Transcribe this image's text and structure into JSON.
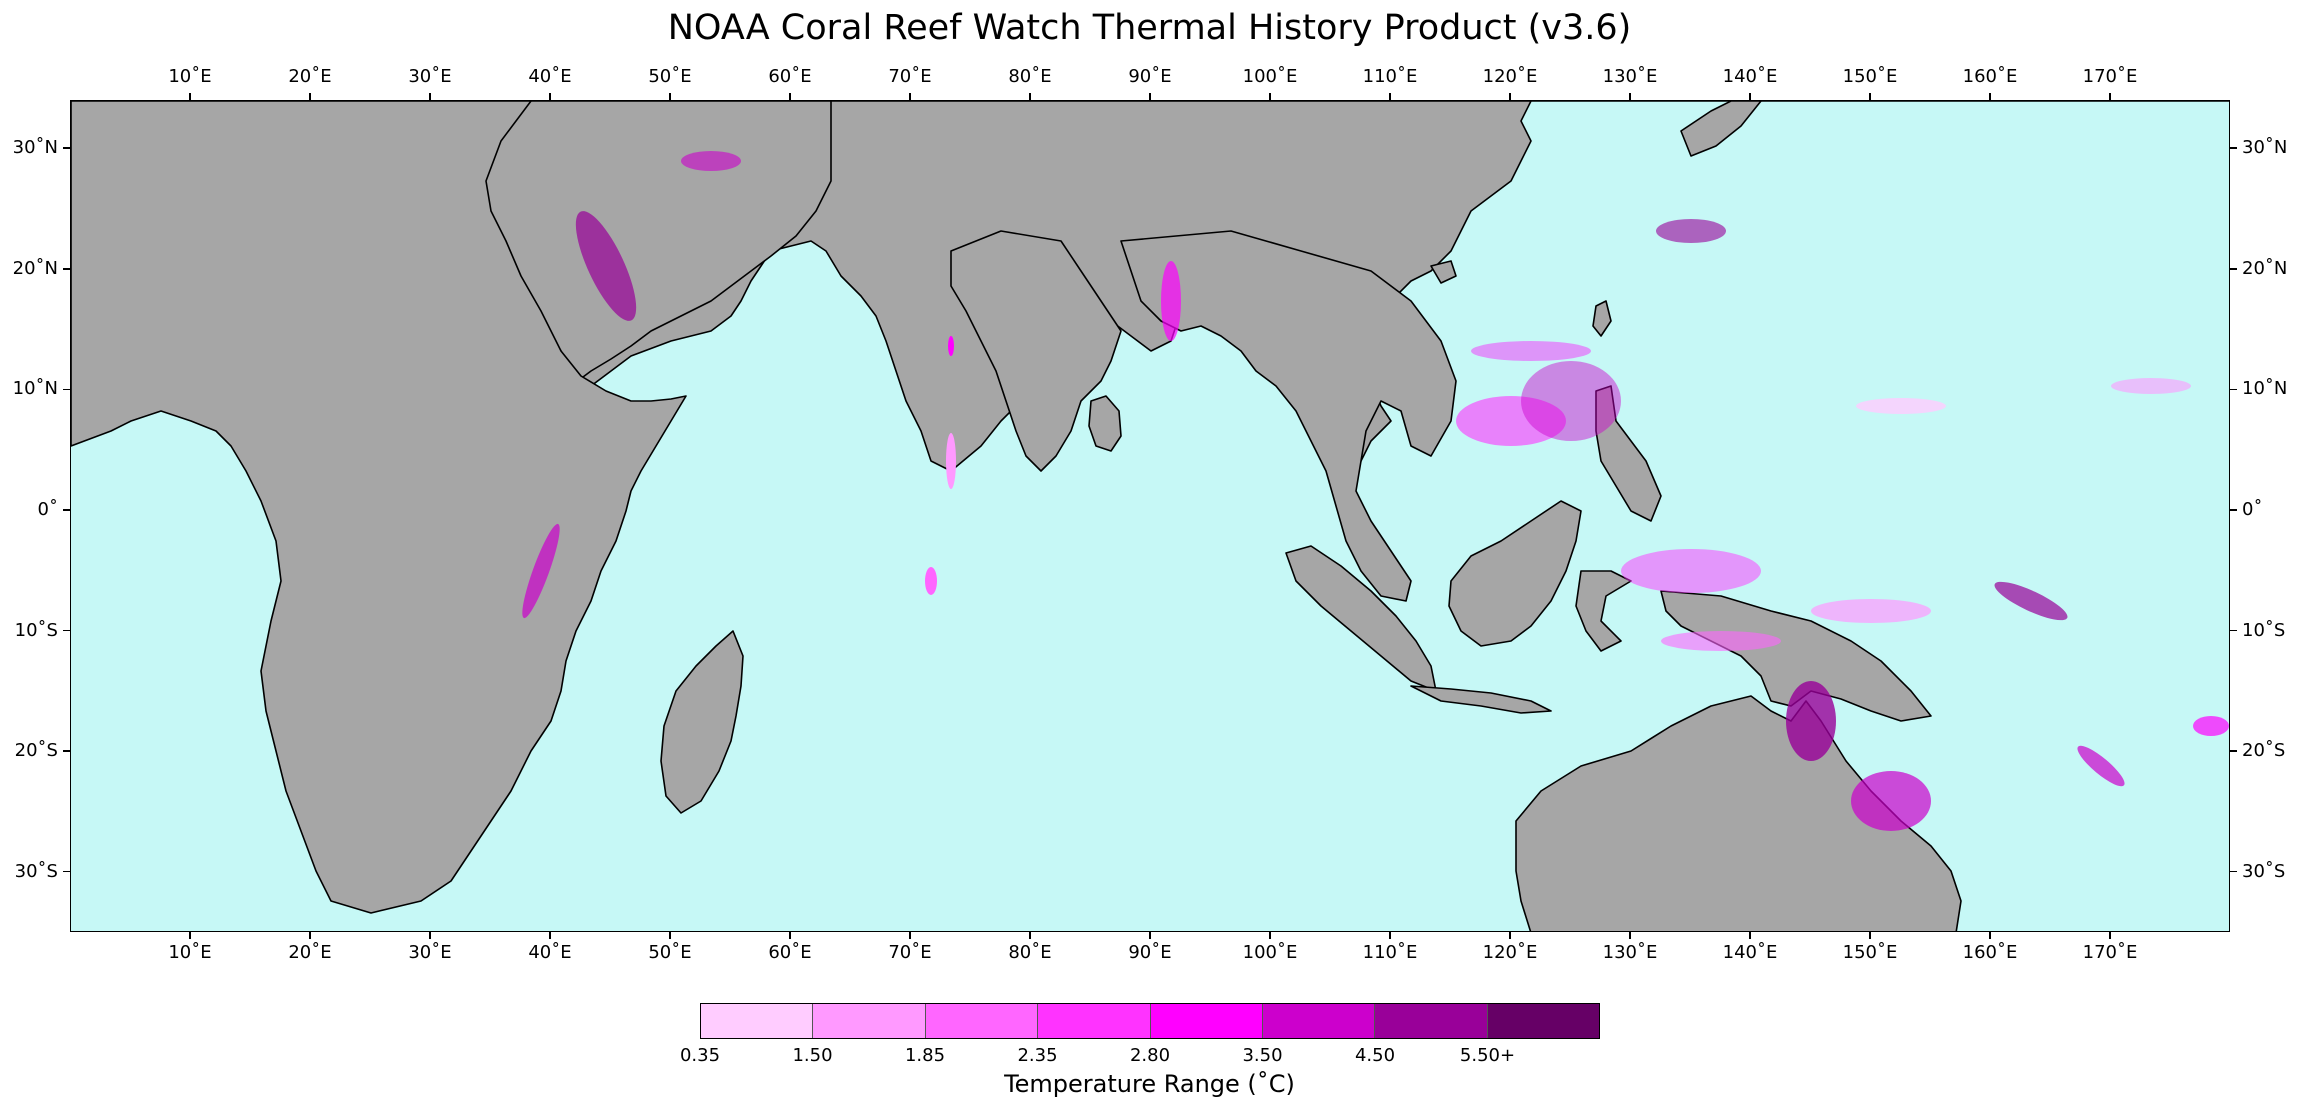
{
  "title": "NOAA Coral Reef Watch Thermal History Product (v3.6)",
  "map": {
    "projection": "PlateCarree",
    "extent": {
      "lon_min": 0,
      "lon_max": 180,
      "lat_min": -35,
      "lat_max": 34
    },
    "colors": {
      "ocean": "#c6f8f6",
      "land": "#a6a6a6",
      "coastline": "#000000"
    },
    "lon_ticks": [
      {
        "value": 10,
        "label": "10˚E"
      },
      {
        "value": 20,
        "label": "20˚E"
      },
      {
        "value": 30,
        "label": "30˚E"
      },
      {
        "value": 40,
        "label": "40˚E"
      },
      {
        "value": 50,
        "label": "50˚E"
      },
      {
        "value": 60,
        "label": "60˚E"
      },
      {
        "value": 70,
        "label": "70˚E"
      },
      {
        "value": 80,
        "label": "80˚E"
      },
      {
        "value": 90,
        "label": "90˚E"
      },
      {
        "value": 100,
        "label": "100˚E"
      },
      {
        "value": 110,
        "label": "110˚E"
      },
      {
        "value": 120,
        "label": "120˚E"
      },
      {
        "value": 130,
        "label": "130˚E"
      },
      {
        "value": 140,
        "label": "140˚E"
      },
      {
        "value": 150,
        "label": "150˚E"
      },
      {
        "value": 160,
        "label": "160˚E"
      },
      {
        "value": 170,
        "label": "170˚E"
      }
    ],
    "lat_ticks": [
      {
        "value": 30,
        "label": "30˚N"
      },
      {
        "value": 20,
        "label": "20˚N"
      },
      {
        "value": 10,
        "label": "10˚N"
      },
      {
        "value": 0,
        "label": "0˚"
      },
      {
        "value": -10,
        "label": "10˚S"
      },
      {
        "value": -20,
        "label": "20˚S"
      },
      {
        "value": -30,
        "label": "30˚S"
      }
    ]
  },
  "colorbar": {
    "title": "Temperature Range (˚C)",
    "tick_labels": [
      "0.35",
      "1.50",
      "1.85",
      "2.35",
      "2.80",
      "3.50",
      "4.50",
      "5.50+"
    ],
    "colors": [
      "#ffccff",
      "#ff99ff",
      "#ff66ff",
      "#ff33ff",
      "#ff00ff",
      "#cc00cc",
      "#990099",
      "#660066"
    ]
  }
}
